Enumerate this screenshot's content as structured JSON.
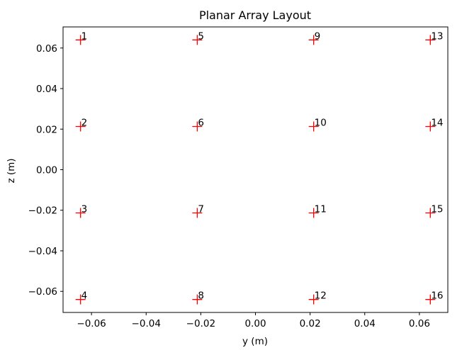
{
  "chart_data": {
    "type": "scatter",
    "title": "Planar Array Layout",
    "xlabel": "y (m)",
    "ylabel": "z (m)",
    "xlim": [
      -0.0704,
      0.0704
    ],
    "ylim": [
      -0.0704,
      0.0704
    ],
    "xticks": [
      -0.06,
      -0.04,
      -0.02,
      0.0,
      0.02,
      0.04,
      0.06
    ],
    "xtick_labels": [
      "−0.06",
      "−0.04",
      "−0.02",
      "0.00",
      "0.02",
      "0.04",
      "0.06"
    ],
    "yticks": [
      -0.06,
      -0.04,
      -0.02,
      0.0,
      0.02,
      0.04,
      0.06
    ],
    "ytick_labels": [
      "−0.06",
      "−0.04",
      "−0.02",
      "0.00",
      "0.02",
      "0.04",
      "0.06"
    ],
    "grid": false,
    "marker": "plus",
    "marker_color": "#ff0000",
    "points": [
      {
        "label": "1",
        "y": -0.064,
        "z": 0.064
      },
      {
        "label": "2",
        "y": -0.064,
        "z": 0.0213
      },
      {
        "label": "3",
        "y": -0.064,
        "z": -0.0213
      },
      {
        "label": "4",
        "y": -0.064,
        "z": -0.064
      },
      {
        "label": "5",
        "y": -0.0213,
        "z": 0.064
      },
      {
        "label": "6",
        "y": -0.0213,
        "z": 0.0213
      },
      {
        "label": "7",
        "y": -0.0213,
        "z": -0.0213
      },
      {
        "label": "8",
        "y": -0.0213,
        "z": -0.064
      },
      {
        "label": "9",
        "y": 0.0213,
        "z": 0.064
      },
      {
        "label": "10",
        "y": 0.0213,
        "z": 0.0213
      },
      {
        "label": "11",
        "y": 0.0213,
        "z": -0.0213
      },
      {
        "label": "12",
        "y": 0.0213,
        "z": -0.064
      },
      {
        "label": "13",
        "y": 0.064,
        "z": 0.064
      },
      {
        "label": "14",
        "y": 0.064,
        "z": 0.0213
      },
      {
        "label": "15",
        "y": 0.064,
        "z": -0.0213
      },
      {
        "label": "16",
        "y": 0.064,
        "z": -0.064
      }
    ]
  }
}
